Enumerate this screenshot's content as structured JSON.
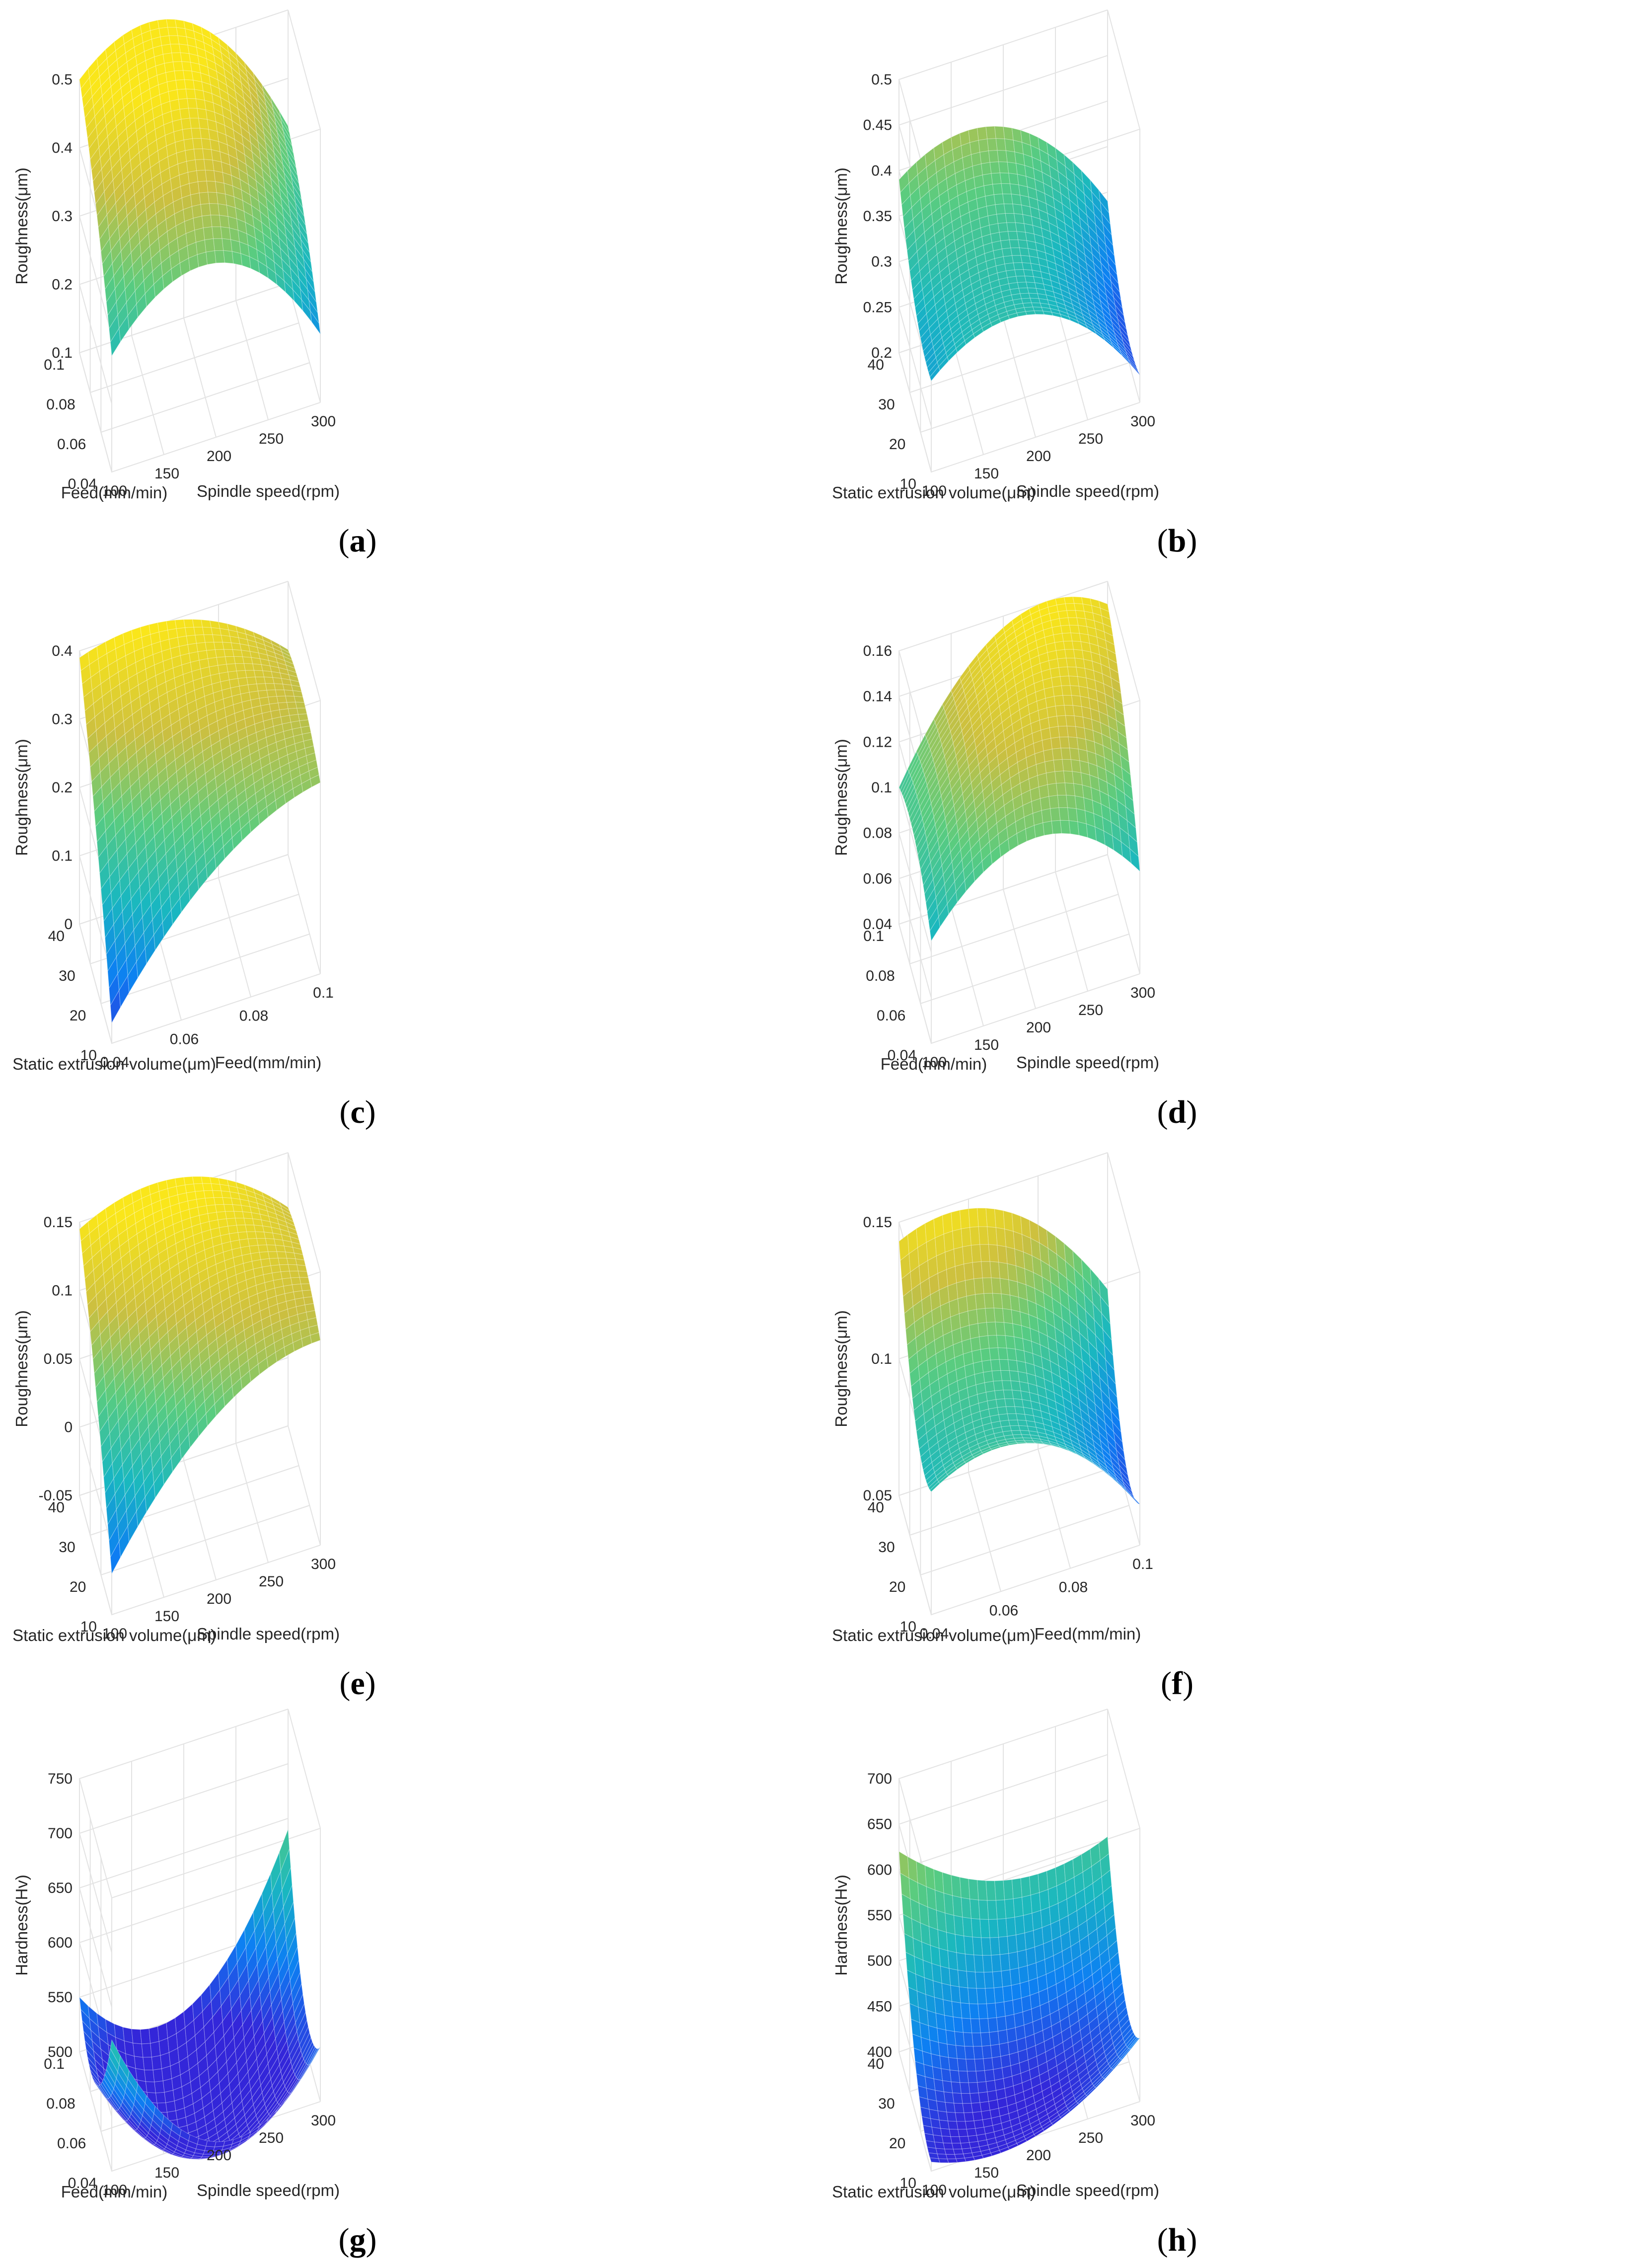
{
  "chart_data": [
    {
      "type": "surface",
      "label": "a",
      "xlabel": "Spindle speed(rpm)",
      "ylabel": "Feed(mm/min)",
      "zlabel": "Roughness(μm)",
      "xlim": [
        100,
        300
      ],
      "ylim": [
        0.04,
        0.1
      ],
      "zlim": [
        0.1,
        0.5
      ],
      "xticks": [
        "100",
        "150",
        "200",
        "250",
        "300"
      ],
      "yticks": [
        "0.04",
        "0.06",
        "0.08",
        "0.1"
      ],
      "zticks": [
        "0.1",
        "0.2",
        "0.3",
        "0.4",
        "0.5"
      ],
      "corners": {
        "xmin_ymin": 0.27,
        "xmax_ymin": 0.2,
        "xmin_ymax": 0.5,
        "xmax_ymax": 0.33
      },
      "curv_x": 0.12,
      "curv_y": 0.02
    },
    {
      "type": "surface",
      "label": "b",
      "xlabel": "Spindle speed(rpm)",
      "ylabel": "Static extrusion volume(μm)",
      "zlabel": "Roughness(μm)",
      "xlim": [
        100,
        300
      ],
      "ylim": [
        10,
        40
      ],
      "zlim": [
        0.2,
        0.5
      ],
      "xticks": [
        "100",
        "150",
        "200",
        "250",
        "300"
      ],
      "yticks": [
        "10",
        "20",
        "30",
        "40"
      ],
      "zticks": [
        "0.2",
        "0.25",
        "0.3",
        "0.35",
        "0.4",
        "0.45",
        "0.5"
      ],
      "corners": {
        "xmin_ymin": 0.3,
        "xmax_ymin": 0.23,
        "xmin_ymax": 0.39,
        "xmax_ymax": 0.29
      },
      "curv_x": 0.07,
      "curv_y": -0.03
    },
    {
      "type": "surface",
      "label": "c",
      "xlabel": "Feed(mm/min)",
      "ylabel": "Static extrusion volume(μm)",
      "zlabel": "Roughness(μm)",
      "xlim": [
        0.04,
        0.1
      ],
      "ylim": [
        10,
        40
      ],
      "zlim": [
        0,
        0.4
      ],
      "xticks": [
        "0.04",
        "0.06",
        "0.08",
        "0.1"
      ],
      "yticks": [
        "10",
        "20",
        "30",
        "40"
      ],
      "zticks": [
        "0",
        "0.1",
        "0.2",
        "0.3",
        "0.4"
      ],
      "corners": {
        "xmin_ymin": 0.03,
        "xmax_ymin": 0.28,
        "xmin_ymax": 0.39,
        "xmax_ymax": 0.3
      },
      "curv_x": 0.05,
      "curv_y": 0.02
    },
    {
      "type": "surface",
      "label": "d",
      "xlabel": "Spindle speed(rpm)",
      "ylabel": "Feed(mm/min)",
      "zlabel": "Roughness(μm)",
      "xlim": [
        100,
        300
      ],
      "ylim": [
        0.04,
        0.1
      ],
      "zlim": [
        0.04,
        0.16
      ],
      "xticks": [
        "100",
        "150",
        "200",
        "250",
        "300"
      ],
      "yticks": [
        "0.04",
        "0.06",
        "0.08",
        "0.1"
      ],
      "zticks": [
        "0.04",
        "0.06",
        "0.08",
        "0.1",
        "0.12",
        "0.14",
        "0.16"
      ],
      "corners": {
        "xmin_ymin": 0.085,
        "xmax_ymin": 0.085,
        "xmin_ymax": 0.1,
        "xmax_ymax": 0.15
      },
      "curv_x": 0.03,
      "curv_y": 0.01
    },
    {
      "type": "surface",
      "label": "e",
      "xlabel": "Spindle speed(rpm)",
      "ylabel": "Static extrusion volume(μm)",
      "zlabel": "Roughness(μm)",
      "xlim": [
        100,
        300
      ],
      "ylim": [
        10,
        40
      ],
      "zlim": [
        -0.05,
        0.15
      ],
      "xticks": [
        "100",
        "150",
        "200",
        "250",
        "300"
      ],
      "yticks": [
        "10",
        "20",
        "30",
        "40"
      ],
      "zticks": [
        "-0.05",
        "0",
        "0.05",
        "0.1",
        "0.15"
      ],
      "corners": {
        "xmin_ymin": -0.02,
        "xmax_ymin": 0.1,
        "xmin_ymax": 0.145,
        "xmax_ymax": 0.11
      },
      "curv_x": 0.03,
      "curv_y": 0.01
    },
    {
      "type": "surface",
      "label": "f",
      "xlabel": "Feed(mm/min)",
      "ylabel": "Static extrusion volume(μm)",
      "zlabel": "Roughness(μm)",
      "xlim": [
        0.04,
        0.1
      ],
      "ylim": [
        10,
        40
      ],
      "zlim": [
        0.05,
        0.15
      ],
      "xticks": [
        "0.04",
        "0.06",
        "0.08",
        "0.1"
      ],
      "yticks": [
        "10",
        "20",
        "30",
        "40"
      ],
      "zticks": [
        "0.05",
        "0.1",
        "0.15"
      ],
      "corners": {
        "xmin_ymin": 0.095,
        "xmax_ymin": 0.065,
        "xmin_ymax": 0.143,
        "xmax_ymax": 0.1
      },
      "curv_x": 0.02,
      "curv_y": -0.02
    },
    {
      "type": "surface",
      "label": "g",
      "xlabel": "Spindle speed(rpm)",
      "ylabel": "Feed(mm/min)",
      "zlabel": "Hardness(Hv)",
      "xlim": [
        100,
        300
      ],
      "ylim": [
        0.04,
        0.1
      ],
      "zlim": [
        500,
        750
      ],
      "xticks": [
        "100",
        "150",
        "200",
        "250",
        "300"
      ],
      "yticks": [
        "0.04",
        "0.06",
        "0.08",
        "0.1"
      ],
      "zticks": [
        "500",
        "550",
        "600",
        "650",
        "700",
        "750"
      ],
      "corners": {
        "xmin_ymin": 620,
        "xmax_ymin": 550,
        "xmin_ymax": 550,
        "xmax_ymax": 640
      },
      "curv_x": -90,
      "curv_y": -60
    },
    {
      "type": "surface",
      "label": "h",
      "xlabel": "Spindle speed(rpm)",
      "ylabel": "Static extrusion volume(μm)",
      "zlabel": "Hardness(Hv)",
      "xlim": [
        100,
        300
      ],
      "ylim": [
        10,
        40
      ],
      "zlim": [
        400,
        700
      ],
      "xticks": [
        "100",
        "150",
        "200",
        "250",
        "300"
      ],
      "yticks": [
        "10",
        "20",
        "30",
        "40"
      ],
      "zticks": [
        "400",
        "450",
        "500",
        "550",
        "600",
        "650",
        "700"
      ],
      "corners": {
        "xmin_ymin": 410,
        "xmax_ymin": 470,
        "xmin_ymax": 620,
        "xmax_ymax": 560
      },
      "curv_x": -40,
      "curv_y": -60
    }
  ]
}
